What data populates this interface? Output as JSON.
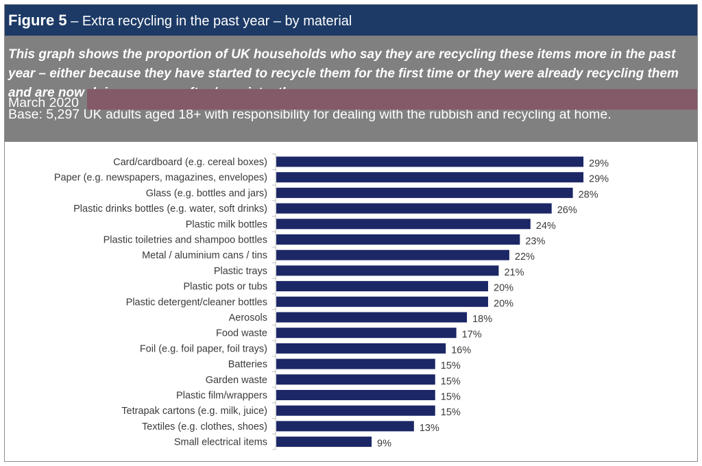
{
  "header": {
    "figure_label": "Figure 5",
    "title": "– Extra recycling in the past year – by material"
  },
  "description": {
    "summary": "This graph shows the proportion of UK households who say they are recycling these items more in the past year – either because they have started to recycle them for the first time or they were already recycling them and are now doing so more often/consistently.",
    "base": "Base: 5,297 UK adults aged 18+ with responsibility for dealing with the rubbish and recycling at home.",
    "date": "March 2020"
  },
  "colors": {
    "title_bar": "#1d3a66",
    "description_bg": "#808080",
    "highlight": "#845a69",
    "bar": "#1c2766"
  },
  "chart_data": {
    "type": "bar",
    "orientation": "horizontal",
    "title": "Extra recycling in the past year – by material",
    "xlabel": "",
    "ylabel": "",
    "xlim": [
      0,
      30
    ],
    "value_suffix": "%",
    "categories": [
      "Card/cardboard (e.g. cereal boxes)",
      "Paper (e.g. newspapers, magazines, envelopes)",
      "Glass (e.g. bottles and jars)",
      "Plastic drinks bottles (e.g. water, soft drinks)",
      "Plastic milk bottles",
      "Plastic toiletries and shampoo bottles",
      "Metal / aluminium cans / tins",
      "Plastic trays",
      "Plastic pots or tubs",
      "Plastic detergent/cleaner bottles",
      "Aerosols",
      "Food waste",
      "Foil (e.g. foil paper, foil trays)",
      "Batteries",
      "Garden waste",
      "Plastic film/wrappers",
      "Tetrapak cartons (e.g. milk, juice)",
      "Textiles (e.g. clothes, shoes)",
      "Small electrical items"
    ],
    "values": [
      29,
      29,
      28,
      26,
      24,
      23,
      22,
      21,
      20,
      20,
      18,
      17,
      16,
      15,
      15,
      15,
      15,
      13,
      9
    ],
    "data_labels": [
      "29%",
      "29%",
      "28%",
      "26%",
      "24%",
      "23%",
      "22%",
      "21%",
      "20%",
      "20%",
      "18%",
      "17%",
      "16%",
      "15%",
      "15%",
      "15%",
      "15%",
      "13%",
      "9%"
    ]
  }
}
